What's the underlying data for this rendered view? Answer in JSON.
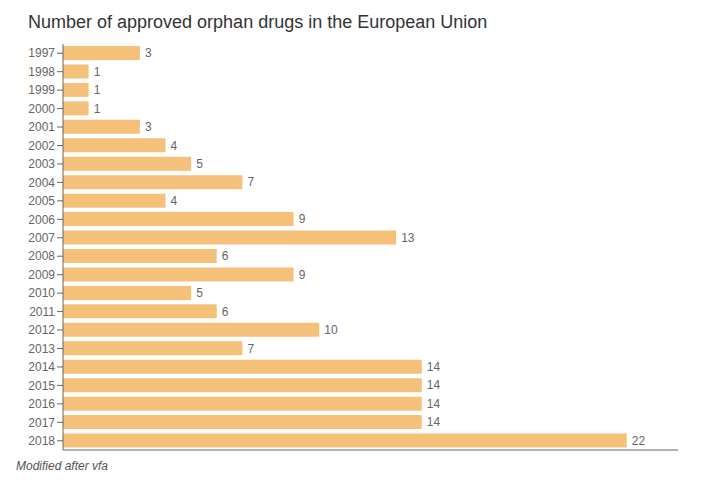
{
  "chart_data": {
    "type": "bar",
    "title": "Number of approved orphan drugs in the European Union",
    "orientation": "horizontal",
    "categories": [
      "1997",
      "1998",
      "1999",
      "2000",
      "2001",
      "2002",
      "2003",
      "2004",
      "2005",
      "2006",
      "2007",
      "2008",
      "2009",
      "2010",
      "2011",
      "2012",
      "2013",
      "2014",
      "2015",
      "2016",
      "2017",
      "2018"
    ],
    "values": [
      3,
      1,
      1,
      1,
      3,
      4,
      5,
      7,
      4,
      9,
      13,
      6,
      9,
      5,
      6,
      10,
      7,
      14,
      14,
      14,
      14,
      22
    ],
    "color": "#f5c07a",
    "xlim": [
      0,
      24
    ],
    "data_labels": true,
    "tick_labels": "y",
    "grid": false,
    "annotations": [
      "Modified after vfa"
    ]
  }
}
